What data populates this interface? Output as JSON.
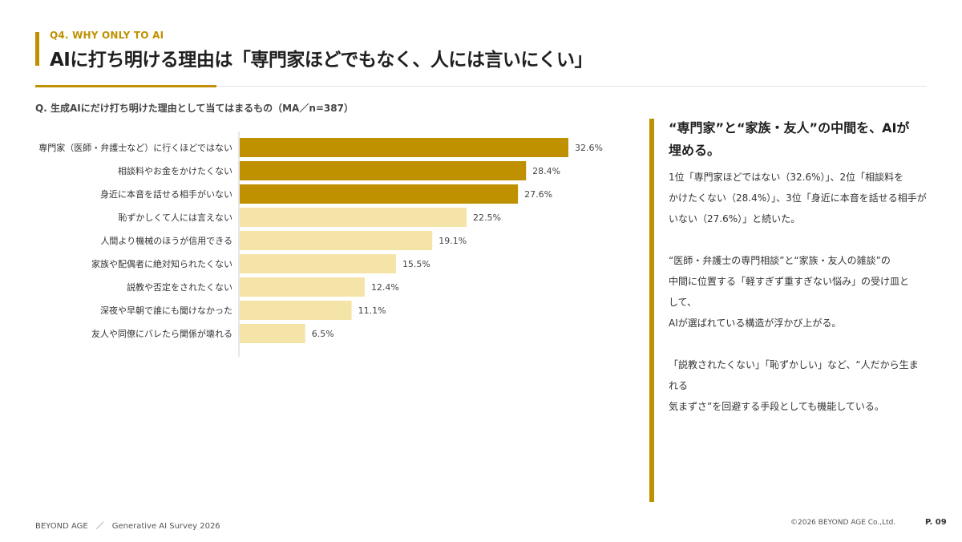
{
  "header": {
    "eyebrow": "Q4.  WHY ONLY TO AI",
    "title": "AIに打ち明ける理由は「専門家ほどでもなく、人には言いにくい」"
  },
  "question": "Q. 生成AIにだけ打ち明けた理由として当てはまるもの（MA／n=387）",
  "colors": {
    "accent": "#bf9000",
    "top3": "#bf9000",
    "other": "#f5e4a8"
  },
  "chart_data": {
    "type": "bar",
    "orientation": "horizontal",
    "categories": [
      "専門家（医師・弁護士など）に行くほどではない",
      "相談料やお金をかけたくない",
      "身近に本音を話せる相手がいない",
      "恥ずかしくて人には言えない",
      "人間より機械のほうが信用できる",
      "家族や配偶者に絶対知られたくない",
      "説教や否定をされたくない",
      "深夜や早朝で誰にも聞けなかった",
      "友人や同僚にバレたら関係が壊れる"
    ],
    "values": [
      32.6,
      28.4,
      27.6,
      22.5,
      19.1,
      15.5,
      12.4,
      11.1,
      6.5
    ],
    "value_labels": [
      "32.6%",
      "28.4%",
      "27.6%",
      "22.5%",
      "19.1%",
      "15.5%",
      "12.4%",
      "11.1%",
      "6.5%"
    ],
    "highlight_top": 3,
    "xlim": [
      0,
      40
    ],
    "grid": false,
    "legend": "none"
  },
  "sidebar": {
    "heading": "“専門家”と“家族・友人”の中間を、AIが埋める。",
    "paragraphs": [
      [
        "1位「専門家ほどではない（32.6%）」、2位「相談料を",
        "かけたくない（28.4%）」、3位「身近に本音を話せる相手が",
        "いない（27.6%）」と続いた。"
      ],
      [
        "“医師・弁護士の専門相談”と“家族・友人の雑談”の",
        "中間に位置する「軽すぎず重すぎない悩み」の受け皿と",
        "して、",
        "AIが選ばれている構造が浮かび上がる。"
      ],
      [
        "「説教されたくない」「恥ずかしい」など、“人だから生ま",
        "れる",
        "気まずさ”を回避する手段としても機能している。"
      ]
    ]
  },
  "footer": {
    "left": "BEYOND AGE　／　Generative AI Survey 2026",
    "copyright": "©2026 BEYOND AGE Co.,Ltd.",
    "page": "P. 09"
  }
}
